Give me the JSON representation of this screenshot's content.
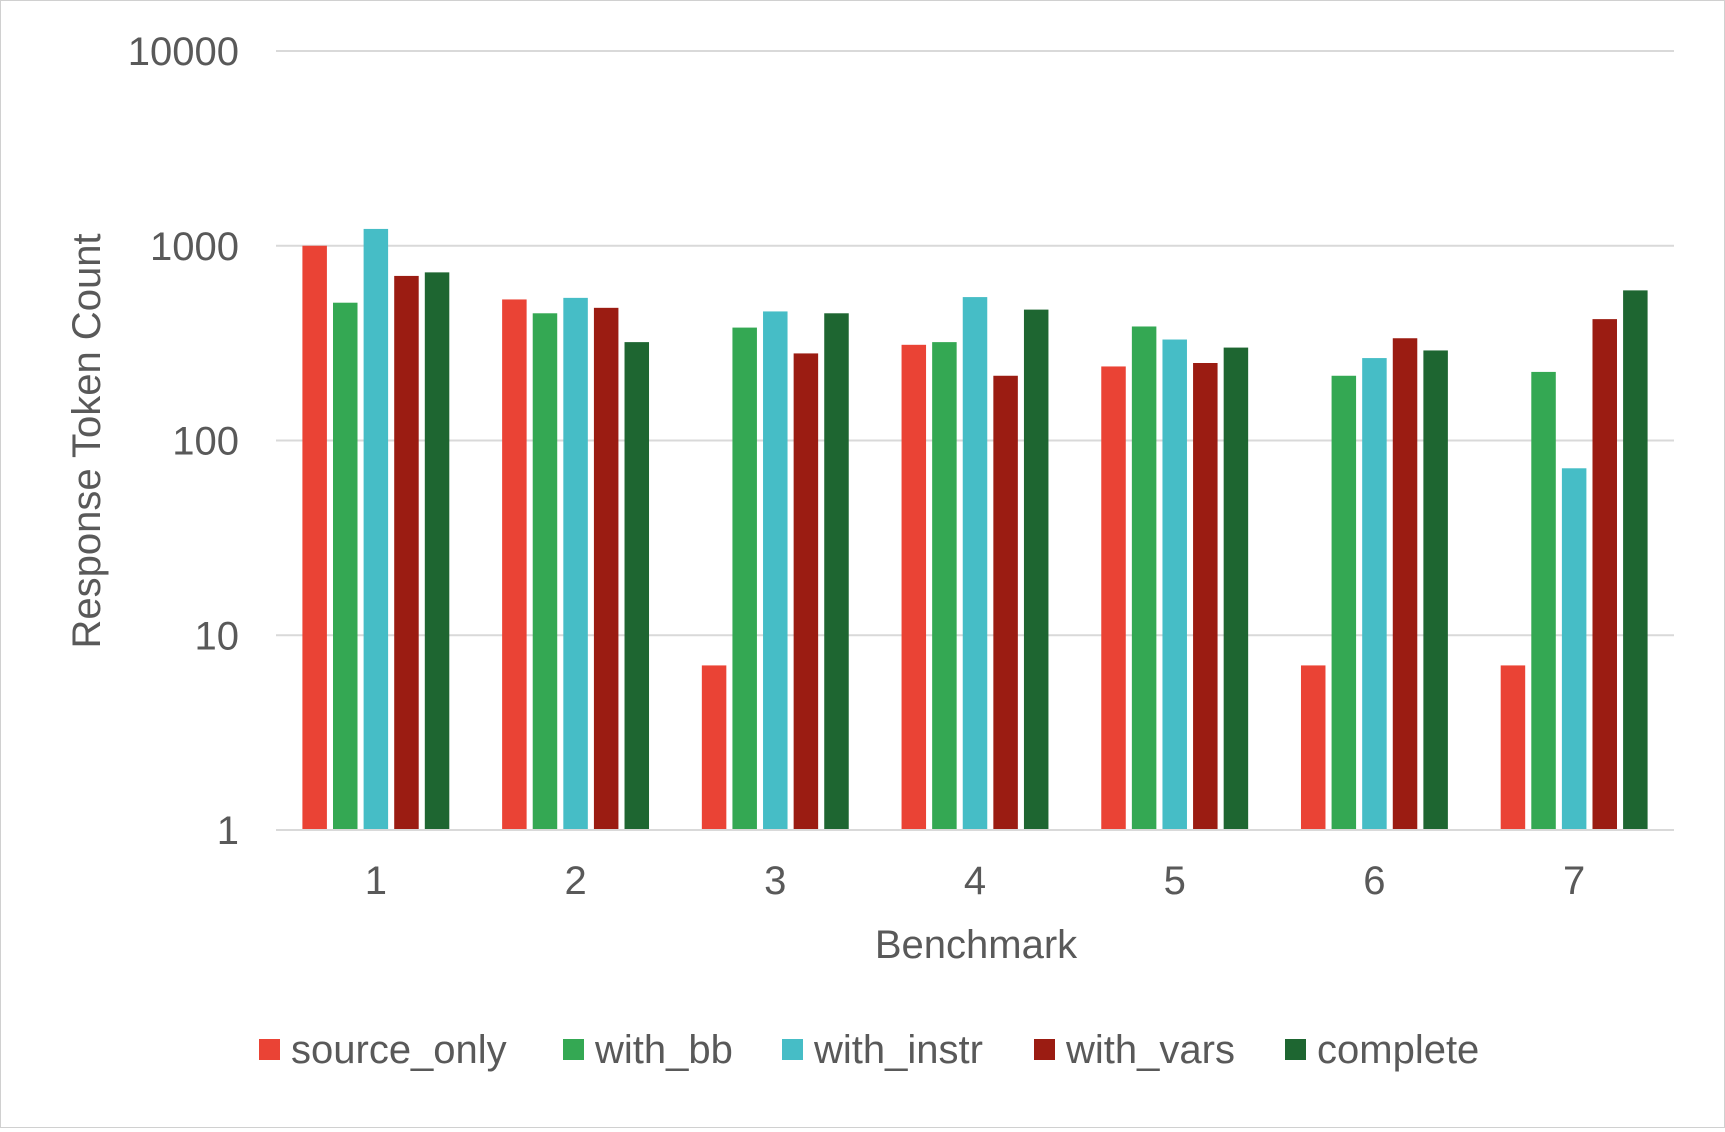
{
  "chart_data": {
    "type": "bar",
    "title": "",
    "xlabel": "Benchmark",
    "ylabel": "Response Token Count",
    "yscale": "log",
    "ylim": [
      1,
      10000
    ],
    "yticks": [
      "1",
      "10",
      "100",
      "1000",
      "10000"
    ],
    "grid": true,
    "legend_position": "bottom",
    "categories": [
      "1",
      "2",
      "3",
      "4",
      "5",
      "6",
      "7"
    ],
    "series": [
      {
        "name": "source_only",
        "color": "#EA4335",
        "values": [
          1000,
          530,
          7,
          310,
          240,
          7,
          7
        ]
      },
      {
        "name": "with_bb",
        "color": "#34A853",
        "values": [
          510,
          450,
          380,
          320,
          385,
          215,
          225
        ]
      },
      {
        "name": "with_instr",
        "color": "#46BDC6",
        "values": [
          1220,
          540,
          460,
          545,
          330,
          265,
          72
        ]
      },
      {
        "name": "with_vars",
        "color": "#9B1C12",
        "values": [
          700,
          480,
          280,
          215,
          250,
          335,
          420
        ]
      },
      {
        "name": "complete",
        "color": "#1E6631",
        "values": [
          730,
          320,
          450,
          470,
          300,
          290,
          590
        ]
      }
    ]
  }
}
